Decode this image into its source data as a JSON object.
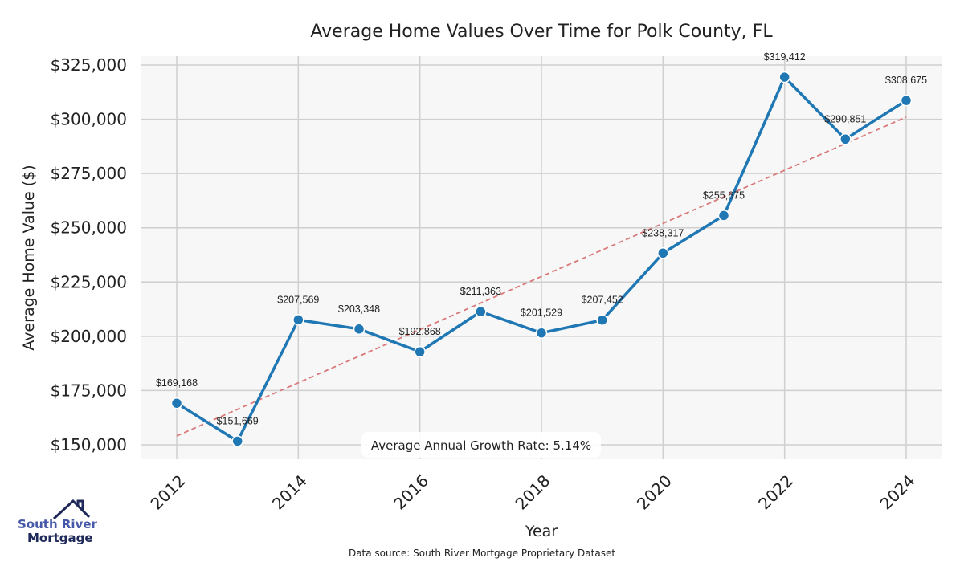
{
  "chart_data": {
    "type": "line",
    "title": "Average Home Values Over Time for Polk County, FL",
    "xlabel": "Year",
    "ylabel": "Average Home Value ($)",
    "x": [
      2012,
      2013,
      2014,
      2015,
      2016,
      2017,
      2018,
      2019,
      2020,
      2021,
      2022,
      2023,
      2024
    ],
    "values": [
      169168,
      151669,
      207569,
      203348,
      192868,
      211363,
      201529,
      207452,
      238317,
      255675,
      319412,
      290851,
      308675
    ],
    "data_labels": [
      "$169,168",
      "$151,669",
      "$207,569",
      "$203,348",
      "$192,868",
      "$211,363",
      "$201,529",
      "$207,452",
      "$238,317",
      "$255,675",
      "$319,412",
      "$290,851",
      "$308,675"
    ],
    "xticks": [
      "2012",
      "2014",
      "2016",
      "2018",
      "2020",
      "2022",
      "2024"
    ],
    "yticks": [
      150000,
      175000,
      200000,
      225000,
      250000,
      275000,
      300000,
      325000
    ],
    "ytick_labels": [
      "$150,000",
      "$175,000",
      "$200,000",
      "$225,000",
      "$250,000",
      "$275,000",
      "$300,000",
      "$325,000"
    ],
    "ylim": [
      143000,
      329000
    ],
    "xlim": [
      2011.4,
      2024.6
    ],
    "trend": {
      "x": [
        2012,
        2024
      ],
      "y": [
        154100,
        301000
      ],
      "color": "#d9797a"
    },
    "annotation": "Average Annual Growth Rate: 5.14%",
    "series_color": "#1f77b4",
    "grid": true,
    "source": "Data source: South River Mortgage Proprietary Dataset"
  },
  "logo": {
    "line1": "South River",
    "line2": "Mortgage"
  }
}
